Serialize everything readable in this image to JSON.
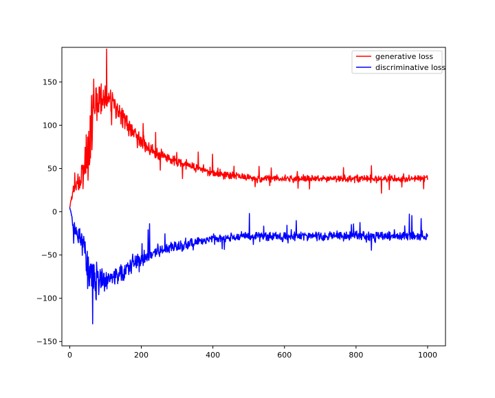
{
  "chart_data": {
    "type": "line",
    "title": "",
    "xlabel": "",
    "ylabel": "",
    "xlim": [
      -22,
      1050
    ],
    "ylim": [
      -155,
      190
    ],
    "xticks": [
      0,
      200,
      400,
      600,
      800,
      1000
    ],
    "yticks": [
      -150,
      -100,
      -50,
      0,
      50,
      100,
      150
    ],
    "xtick_labels": [
      "0",
      "200",
      "400",
      "600",
      "800",
      "1000"
    ],
    "ytick_labels": [
      "−150",
      "−100",
      "−50",
      "0",
      "50",
      "100",
      "150"
    ],
    "grid": false,
    "legend_position": "top-right",
    "x_range": [
      0,
      1000
    ],
    "series": [
      {
        "name": "generative loss",
        "color": "#ff0000",
        "x": [
          0,
          10,
          20,
          30,
          40,
          50,
          60,
          70,
          80,
          90,
          100,
          120,
          140,
          160,
          180,
          200,
          225,
          250,
          275,
          300,
          325,
          350,
          375,
          400,
          450,
          500,
          550,
          600,
          650,
          700,
          750,
          800,
          850,
          900,
          950,
          1000
        ],
        "values": [
          5,
          25,
          32,
          35,
          45,
          75,
          95,
          115,
          128,
          132,
          130,
          125,
          115,
          100,
          90,
          82,
          72,
          66,
          62,
          58,
          55,
          52,
          48,
          45,
          42,
          39,
          38,
          38,
          38,
          38,
          38,
          38,
          38,
          38,
          38,
          38
        ],
        "noise": [
          0,
          6,
          8,
          10,
          20,
          35,
          40,
          30,
          18,
          16,
          14,
          12,
          11,
          10,
          9,
          8,
          7,
          6,
          6,
          6,
          5,
          5,
          5,
          5,
          4,
          4,
          4,
          4,
          4,
          4,
          4,
          4,
          4,
          4,
          4,
          4
        ]
      },
      {
        "name": "discriminative loss",
        "color": "#0000ff",
        "x": [
          0,
          10,
          20,
          30,
          40,
          50,
          60,
          70,
          80,
          90,
          100,
          120,
          140,
          160,
          180,
          200,
          225,
          250,
          275,
          300,
          325,
          350,
          375,
          400,
          450,
          500,
          550,
          600,
          650,
          700,
          750,
          800,
          850,
          900,
          950,
          1000
        ],
        "values": [
          5,
          -15,
          -25,
          -30,
          -40,
          -60,
          -75,
          -80,
          -82,
          -80,
          -78,
          -75,
          -70,
          -65,
          -60,
          -56,
          -50,
          -45,
          -42,
          -40,
          -38,
          -35,
          -33,
          -32,
          -30,
          -28,
          -28,
          -28,
          -28,
          -28,
          -28,
          -28,
          -28,
          -28,
          -28,
          -28
        ],
        "noise": [
          0,
          6,
          8,
          12,
          20,
          25,
          25,
          20,
          16,
          15,
          14,
          13,
          12,
          11,
          10,
          9,
          8,
          7,
          7,
          6,
          6,
          5,
          5,
          5,
          5,
          5,
          5,
          5,
          5,
          5,
          5,
          5,
          5,
          5,
          5,
          5
        ]
      }
    ]
  }
}
